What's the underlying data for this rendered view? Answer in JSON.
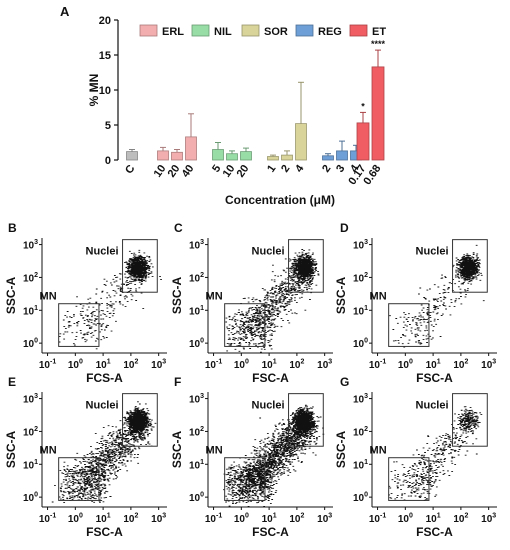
{
  "chart_data": [
    {
      "panel": "A",
      "type": "bar",
      "ylabel": "% MN",
      "xlabel": "Concentration (μM)",
      "ylim": [
        0,
        20
      ],
      "yticks": [
        0,
        5,
        10,
        15,
        20
      ],
      "legend_position": "top",
      "legend": [
        {
          "name": "ERL",
          "color": "#f2aeae"
        },
        {
          "name": "NIL",
          "color": "#98dda5"
        },
        {
          "name": "SOR",
          "color": "#d8d49a"
        },
        {
          "name": "REG",
          "color": "#6e9fd6"
        },
        {
          "name": "ET",
          "color": "#f05d62"
        }
      ],
      "control": {
        "color": "#bdbdbd"
      },
      "groups": [
        {
          "name": "C",
          "bars": [
            {
              "label": "C",
              "value": 1.2,
              "error": 0.3
            }
          ]
        },
        {
          "name": "ERL",
          "bars": [
            {
              "label": "10",
              "value": 1.3,
              "error": 0.5
            },
            {
              "label": "20",
              "value": 1.1,
              "error": 0.4
            },
            {
              "label": "40",
              "value": 3.3,
              "error": 3.3
            }
          ]
        },
        {
          "name": "NIL",
          "bars": [
            {
              "label": "5",
              "value": 1.5,
              "error": 1.0
            },
            {
              "label": "10",
              "value": 0.9,
              "error": 0.4
            },
            {
              "label": "20",
              "value": 1.2,
              "error": 0.5
            }
          ]
        },
        {
          "name": "SOR",
          "bars": [
            {
              "label": "1",
              "value": 0.5,
              "error": 0.2
            },
            {
              "label": "2",
              "value": 0.7,
              "error": 0.6
            },
            {
              "label": "4",
              "value": 5.2,
              "error": 5.9
            }
          ]
        },
        {
          "name": "REG",
          "bars": [
            {
              "label": "2",
              "value": 0.6,
              "error": 0.3
            },
            {
              "label": "3",
              "value": 1.3,
              "error": 1.4
            },
            {
              "label": "4",
              "value": 1.3,
              "error": 0.8
            }
          ]
        },
        {
          "name": "ET",
          "bars": [
            {
              "label": "0.17",
              "value": 5.3,
              "error": 1.5,
              "significance": "*"
            },
            {
              "label": "0.68",
              "value": 13.3,
              "error": 2.4,
              "significance": "****"
            }
          ]
        }
      ]
    },
    {
      "panel": "B",
      "type": "scatter",
      "xlabel": "FCS-A",
      "ylabel": "SSC-A",
      "xscale": "log",
      "yscale": "log",
      "xticks": [
        "10^-1",
        "10^0",
        "10^1",
        "10^2",
        "10^3"
      ],
      "yticks": [
        "10^0",
        "10^1",
        "10^2",
        "10^3"
      ],
      "gates": [
        "Nuclei",
        "MN"
      ]
    },
    {
      "panel": "C",
      "type": "scatter",
      "xlabel": "FSC-A",
      "ylabel": "SSC-A",
      "xscale": "log",
      "yscale": "log",
      "xticks": [
        "10^-1",
        "10^0",
        "10^1",
        "10^2",
        "10^3"
      ],
      "yticks": [
        "10^0",
        "10^1",
        "10^2",
        "10^3"
      ],
      "gates": [
        "Nuclei",
        "MN"
      ]
    },
    {
      "panel": "D",
      "type": "scatter",
      "xlabel": "FSC-A",
      "ylabel": "SSC-A",
      "xscale": "log",
      "yscale": "log",
      "xticks": [
        "10^-1",
        "10^0",
        "10^1",
        "10^2",
        "10^3"
      ],
      "yticks": [
        "10^0",
        "10^1",
        "10^2",
        "10^3"
      ],
      "gates": [
        "Nuclei",
        "MN"
      ]
    },
    {
      "panel": "E",
      "type": "scatter",
      "xlabel": "FSC-A",
      "ylabel": "SSC-A",
      "xscale": "log",
      "yscale": "log",
      "xticks": [
        "10^-1",
        "10^0",
        "10^1",
        "10^2",
        "10^3"
      ],
      "yticks": [
        "10^0",
        "10^1",
        "10^2",
        "10^3"
      ],
      "gates": [
        "Nuclei",
        "MN"
      ]
    },
    {
      "panel": "F",
      "type": "scatter",
      "xlabel": "FSC-A",
      "ylabel": "SSC-A",
      "xscale": "log",
      "yscale": "log",
      "xticks": [
        "10^-1",
        "10^0",
        "10^1",
        "10^2",
        "10^3"
      ],
      "yticks": [
        "10^0",
        "10^1",
        "10^2",
        "10^3"
      ],
      "gates": [
        "Nuclei",
        "MN"
      ]
    },
    {
      "panel": "G",
      "type": "scatter",
      "xlabel": "FSC-A",
      "ylabel": "SSC-A",
      "xscale": "log",
      "yscale": "log",
      "xticks": [
        "10^-1",
        "10^0",
        "10^1",
        "10^2",
        "10^3"
      ],
      "yticks": [
        "10^0",
        "10^1",
        "10^2",
        "10^3"
      ],
      "gates": [
        "Nuclei",
        "MN"
      ]
    }
  ]
}
